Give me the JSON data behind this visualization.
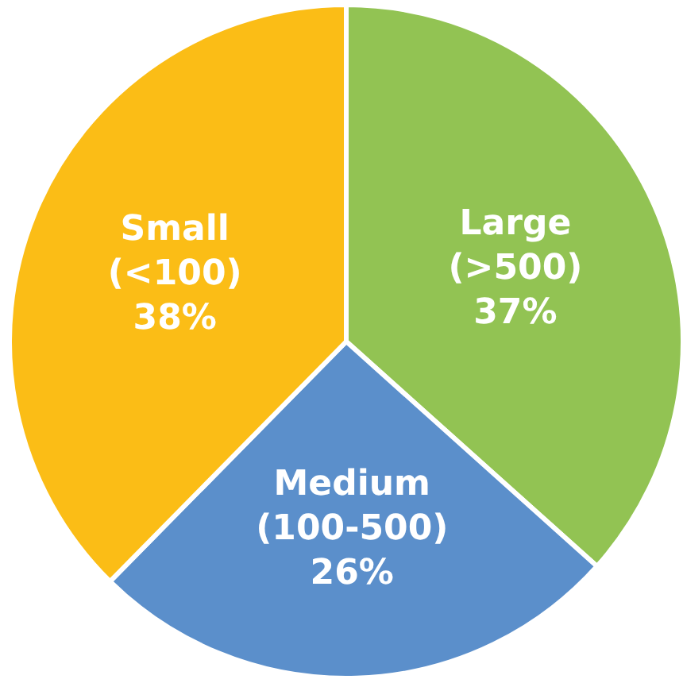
{
  "chart_data": {
    "type": "pie",
    "categories": [
      "Large (>500)",
      "Medium (100-500)",
      "Small (<100)"
    ],
    "values": [
      37,
      26,
      38
    ],
    "value_labels": [
      "37%",
      "26%",
      "38%"
    ],
    "colors": [
      "#92c353",
      "#5b8fcb",
      "#fbbd16"
    ],
    "legend": false
  }
}
